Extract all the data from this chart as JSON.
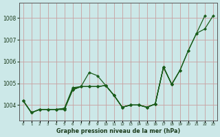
{
  "xlabel": "Graphe pression niveau de la mer (hPa)",
  "background_color": "#cce8e8",
  "grid_color": "#c8a0a0",
  "line_color": "#1a5c1a",
  "ylim": [
    1003.3,
    1008.7
  ],
  "xlim": [
    -0.5,
    23.5
  ],
  "yticks": [
    1004,
    1005,
    1006,
    1007,
    1008
  ],
  "xtick_labels": [
    "0",
    "1",
    "2",
    "3",
    "4",
    "5",
    "6",
    "7",
    "8",
    "9",
    "10",
    "11",
    "12",
    "13",
    "14",
    "15",
    "16",
    "17",
    "18",
    "19",
    "20",
    "21",
    "22",
    "23"
  ],
  "series": [
    {
      "x": [
        0,
        1,
        2,
        3,
        4,
        5,
        6,
        7,
        8,
        9,
        10,
        11,
        12,
        13,
        14,
        15,
        16,
        17,
        18,
        19,
        20,
        21,
        22,
        23
      ],
      "y": [
        1004.2,
        1003.65,
        1003.8,
        1003.8,
        1003.8,
        1003.8,
        1004.7,
        1004.85,
        1005.5,
        1005.35,
        1004.9,
        1004.45,
        1003.9,
        1004.0,
        1004.0,
        1003.9,
        1004.05,
        1005.75,
        1004.95,
        1005.6,
        1006.5,
        1007.3,
        1007.5,
        1008.1
      ]
    },
    {
      "x": [
        0,
        1,
        2,
        3,
        4,
        5,
        6,
        7,
        8,
        9,
        10,
        11,
        12,
        13,
        14,
        15,
        16,
        17,
        18,
        19,
        20,
        21,
        22
      ],
      "y": [
        1004.2,
        1003.65,
        1003.8,
        1003.8,
        1003.8,
        1003.8,
        1004.7,
        1004.85,
        1004.85,
        1004.85,
        1004.9,
        1004.45,
        1003.9,
        1004.0,
        1004.0,
        1003.9,
        1004.05,
        1005.75,
        1004.95,
        1005.6,
        1006.5,
        1007.3,
        1008.1
      ]
    },
    {
      "x": [
        0,
        1,
        2,
        3,
        4,
        5,
        6,
        7,
        8,
        9,
        10,
        11,
        12,
        13,
        14,
        15,
        16,
        17,
        18,
        19
      ],
      "y": [
        1004.2,
        1003.65,
        1003.8,
        1003.8,
        1003.8,
        1003.85,
        1004.8,
        1004.85,
        1004.85,
        1004.85,
        1004.9,
        1004.45,
        1003.9,
        1004.0,
        1004.0,
        1003.9,
        1004.05,
        1005.75,
        1004.95,
        1005.6
      ]
    },
    {
      "x": [
        0,
        1,
        2,
        3,
        4,
        5,
        6,
        7,
        8,
        9,
        10,
        11,
        12,
        13,
        14,
        15,
        16,
        17,
        18
      ],
      "y": [
        1004.2,
        1003.65,
        1003.8,
        1003.8,
        1003.8,
        1003.85,
        1004.75,
        1004.85,
        1004.85,
        1004.85,
        1004.9,
        1004.45,
        1003.9,
        1004.0,
        1004.0,
        1003.9,
        1004.05,
        1005.75,
        1004.95
      ]
    }
  ]
}
